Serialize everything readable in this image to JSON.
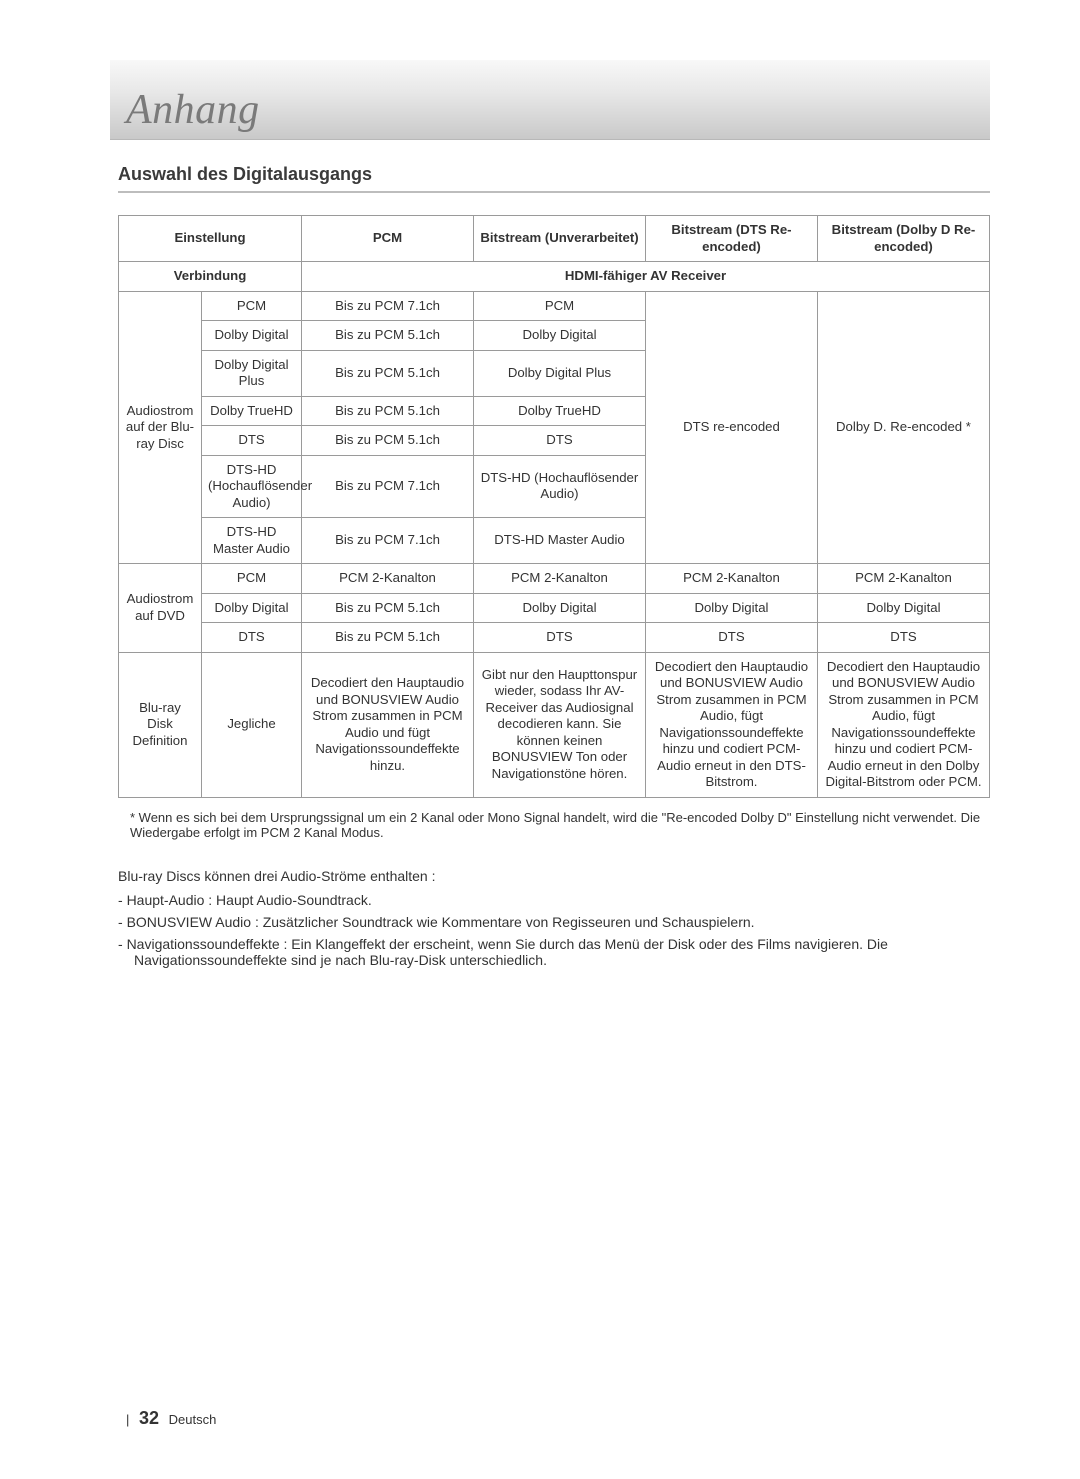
{
  "header": {
    "title": "Anhang"
  },
  "subheading": "Auswahl des Digitalausgangs",
  "table": {
    "head": {
      "setting": "Einstellung",
      "pcm": "PCM",
      "bs_unproc": "Bitstream (Unverarbeitet)",
      "bs_dts": "Bitstream (DTS Re-encoded)",
      "bs_dolby": "Bitstream (Dolby D Re-encoded)",
      "connection": "Verbindung",
      "receiver": "HDMI-fähiger AV Receiver"
    },
    "rows": {
      "group1_label": "Audiostrom auf der Blu-ray Disc",
      "group1_dts_re": "DTS re-encoded",
      "group1_dolby_re": "Dolby D. Re-encoded *",
      "r1": {
        "a": "PCM",
        "c": "Bis zu PCM 7.1ch",
        "d": "PCM"
      },
      "r2": {
        "a": "Dolby Digital",
        "c": "Bis zu PCM 5.1ch",
        "d": "Dolby Digital"
      },
      "r3": {
        "a": "Dolby Digital Plus",
        "c": "Bis zu PCM 5.1ch",
        "d": "Dolby Digital Plus"
      },
      "r4": {
        "a": "Dolby TrueHD",
        "c": "Bis zu PCM 5.1ch",
        "d": "Dolby TrueHD"
      },
      "r5": {
        "a": "DTS",
        "c": "Bis zu PCM 5.1ch",
        "d": "DTS"
      },
      "r6": {
        "a": "DTS-HD (Hochauflösender Audio)",
        "c": "Bis zu PCM 7.1ch",
        "d": "DTS-HD (Hochauflösender Audio)"
      },
      "r7": {
        "a": "DTS-HD Master Audio",
        "c": "Bis zu PCM 7.1ch",
        "d": "DTS-HD Master Audio"
      },
      "group2_label": "Audiostrom auf DVD",
      "r8": {
        "a": "PCM",
        "c": "PCM 2-Kanalton",
        "d": "PCM 2-Kanalton",
        "e": "PCM 2-Kanalton",
        "f": "PCM 2-Kanalton"
      },
      "r9": {
        "a": "Dolby Digital",
        "c": "Bis zu PCM 5.1ch",
        "d": "Dolby Digital",
        "e": "Dolby Digital",
        "f": "Dolby Digital"
      },
      "r10": {
        "a": "DTS",
        "c": "Bis zu PCM 5.1ch",
        "d": "DTS",
        "e": "DTS",
        "f": "DTS"
      },
      "group3_label": "Blu-ray Disk Definition",
      "r11": {
        "a": "Jegliche",
        "c": "Decodiert den Hauptaudio und BONUSVIEW Audio Strom zusammen in PCM Audio und fügt Navigationssoundeffekte hinzu.",
        "d": "Gibt nur den Haupttonspur wieder, sodass Ihr AV-Receiver das Audiosignal decodieren kann. Sie können keinen BONUSVIEW Ton oder Navigationstöne hören.",
        "e": "Decodiert den Hauptaudio und BONUSVIEW Audio Strom zusammen in PCM Audio, fügt Navigationssoundeffekte hinzu und codiert PCM-Audio erneut in den DTS-Bitstrom.",
        "f": "Decodiert den Hauptaudio und BONUSVIEW Audio Strom zusammen in PCM Audio, fügt Navigationssoundeffekte hinzu und codiert PCM-Audio erneut in den Dolby Digital-Bitstrom oder PCM."
      }
    }
  },
  "footnote": "* Wenn es sich bei dem Ursprungssignal um ein 2 Kanal oder Mono Signal handelt, wird die \"Re-encoded Dolby D\" Einstellung nicht verwendet. Die Wiedergabe erfolgt im PCM 2 Kanal Modus.",
  "notes": {
    "intro": "Blu-ray Discs können drei Audio-Ströme enthalten :",
    "items": [
      "Haupt-Audio : Haupt Audio-Soundtrack.",
      "BONUSVIEW Audio : Zusätzlicher Soundtrack wie Kommentare von Regisseuren und Schauspielern.",
      "Navigationssoundeffekte : Ein Klangeffekt der erscheint, wenn Sie durch das Menü der Disk oder des Films navigieren. Die Navigationssoundeffekte sind je nach Blu-ray-Disk unterschiedlich."
    ]
  },
  "page": {
    "bar": "|",
    "number": "32",
    "lang": "Deutsch"
  },
  "colors": {
    "border": "#9a9a9a",
    "rule": "#bdbdbd",
    "text": "#333333",
    "header_title": "#7a7a7a"
  }
}
